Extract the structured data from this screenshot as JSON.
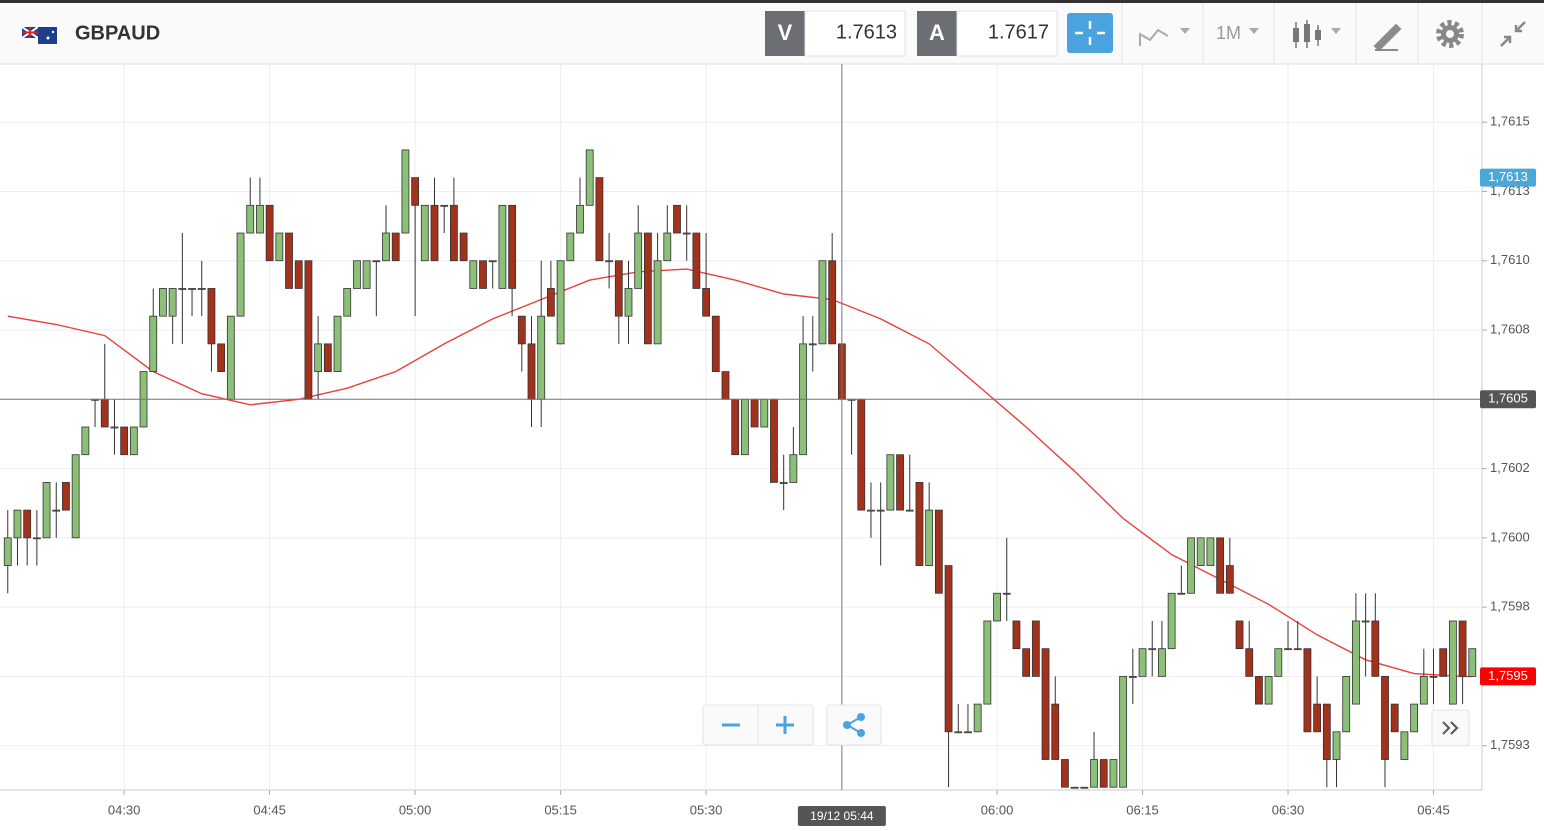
{
  "toolbar": {
    "symbol": "GBPAUD",
    "bid_label": "V",
    "bid": 1.7613,
    "ask_label": "A",
    "ask": 1.7617,
    "timeframe": "1M"
  },
  "chart_data": {
    "type": "candlestick",
    "x": [
      258,
      259,
      260,
      261,
      262,
      263,
      264,
      265,
      266,
      267,
      268,
      269,
      270,
      271,
      272,
      273,
      274,
      275,
      276,
      277,
      278,
      279,
      280,
      281,
      282,
      283,
      284,
      285,
      286,
      287,
      288,
      289,
      290,
      291,
      292,
      293,
      294,
      295,
      296,
      297,
      298,
      299,
      300,
      301,
      302,
      303,
      304,
      305,
      306,
      307,
      308,
      309,
      310,
      311,
      312,
      313,
      314,
      315,
      316,
      317,
      318,
      319,
      320,
      321,
      322,
      323,
      324,
      325,
      326,
      327,
      328,
      329,
      330,
      331,
      332,
      333,
      334,
      335,
      336,
      337,
      338,
      339,
      340,
      341,
      342,
      343,
      344,
      345,
      346,
      347,
      348,
      349,
      350,
      351,
      352,
      353,
      354,
      355,
      356,
      357,
      358,
      359,
      360,
      361,
      362,
      363,
      364,
      365,
      366,
      367,
      368,
      369,
      370,
      371,
      372,
      373,
      374,
      375,
      376,
      377,
      378,
      379,
      380,
      381,
      382,
      383,
      384,
      385,
      386,
      387,
      388,
      389,
      390,
      391,
      392,
      393,
      394,
      395,
      396,
      397,
      398,
      399,
      400,
      401,
      402,
      403,
      404,
      405,
      406,
      407,
      408,
      409
    ],
    "open": [
      1.7599,
      1.76,
      1.7601,
      1.76,
      1.76,
      1.7601,
      1.7602,
      1.76,
      1.7603,
      1.7605,
      1.7605,
      1.7604,
      1.7604,
      1.7603,
      1.7604,
      1.7606,
      1.7608,
      1.7608,
      1.7609,
      1.7609,
      1.7609,
      1.7609,
      1.7607,
      1.7605,
      1.7608,
      1.7611,
      1.7611,
      1.7612,
      1.761,
      1.7611,
      1.761,
      1.761,
      1.7606,
      1.7607,
      1.7606,
      1.7608,
      1.7609,
      1.7609,
      1.761,
      1.761,
      1.7611,
      1.7611,
      1.7613,
      1.761,
      1.7612,
      1.7612,
      1.7612,
      1.7611,
      1.7609,
      1.761,
      1.761,
      1.7609,
      1.7612,
      1.7608,
      1.7607,
      1.7605,
      1.7609,
      1.7607,
      1.761,
      1.7611,
      1.7612,
      1.7613,
      1.761,
      1.761,
      1.7608,
      1.7609,
      1.7611,
      1.7607,
      1.761,
      1.7612,
      1.7611,
      1.7611,
      1.7609,
      1.7608,
      1.7606,
      1.7605,
      1.7603,
      1.7605,
      1.7604,
      1.7605,
      1.7602,
      1.7602,
      1.7603,
      1.7607,
      1.7607,
      1.761,
      1.7607,
      1.7605,
      1.7605,
      1.7601,
      1.7601,
      1.7601,
      1.7603,
      1.7601,
      1.7602,
      1.7599,
      1.7601,
      1.7599,
      1.7593,
      1.7593,
      1.7593,
      1.7594,
      1.7597,
      1.7598,
      1.7597,
      1.7596,
      1.7597,
      1.7596,
      1.7594,
      1.7592,
      1.7591,
      1.7591,
      1.7591,
      1.7592,
      1.7591,
      1.7591,
      1.7595,
      1.7595,
      1.7596,
      1.7595,
      1.7596,
      1.7598,
      1.7598,
      1.7599,
      1.7599,
      1.76,
      1.7599,
      1.7597,
      1.7596,
      1.7595,
      1.7594,
      1.7595,
      1.7596,
      1.7596,
      1.7596,
      1.7594,
      1.7594,
      1.7592,
      1.7593,
      1.7594,
      1.7597,
      1.7597,
      1.7595,
      1.7594,
      1.7592,
      1.7593,
      1.7594,
      1.7595,
      1.7596,
      1.7594,
      1.7597,
      1.7595
    ],
    "high": [
      1.7601,
      1.7601,
      1.7601,
      1.7601,
      1.7602,
      1.7602,
      1.7602,
      1.7603,
      1.7604,
      1.7605,
      1.7607,
      1.7605,
      1.7604,
      1.7604,
      1.7606,
      1.7609,
      1.7609,
      1.7609,
      1.7611,
      1.7609,
      1.761,
      1.7609,
      1.7607,
      1.7608,
      1.7611,
      1.7613,
      1.7613,
      1.7612,
      1.7611,
      1.7611,
      1.761,
      1.761,
      1.7608,
      1.7607,
      1.7608,
      1.7609,
      1.761,
      1.761,
      1.761,
      1.7612,
      1.7611,
      1.7614,
      1.7613,
      1.7612,
      1.7613,
      1.7612,
      1.7613,
      1.7611,
      1.761,
      1.761,
      1.761,
      1.7612,
      1.7612,
      1.7608,
      1.7608,
      1.761,
      1.761,
      1.761,
      1.7611,
      1.7613,
      1.7614,
      1.7613,
      1.7611,
      1.761,
      1.761,
      1.7612,
      1.7611,
      1.7611,
      1.7612,
      1.7612,
      1.7612,
      1.7611,
      1.7611,
      1.7608,
      1.7606,
      1.7605,
      1.7605,
      1.7605,
      1.7605,
      1.7605,
      1.7603,
      1.7604,
      1.7608,
      1.7608,
      1.761,
      1.7611,
      1.7607,
      1.7605,
      1.7605,
      1.7602,
      1.7602,
      1.7603,
      1.7603,
      1.7603,
      1.7602,
      1.7602,
      1.7601,
      1.7599,
      1.7594,
      1.7594,
      1.7594,
      1.7597,
      1.7598,
      1.76,
      1.7597,
      1.7596,
      1.7597,
      1.7596,
      1.7595,
      1.7592,
      1.7591,
      1.7591,
      1.7593,
      1.7592,
      1.7592,
      1.7595,
      1.7596,
      1.7596,
      1.7597,
      1.7597,
      1.7598,
      1.7599,
      1.76,
      1.76,
      1.76,
      1.76,
      1.76,
      1.7597,
      1.7597,
      1.7595,
      1.7595,
      1.7596,
      1.7597,
      1.7597,
      1.7596,
      1.7595,
      1.7594,
      1.7593,
      1.7595,
      1.7598,
      1.7598,
      1.7598,
      1.7595,
      1.7594,
      1.7593,
      1.7594,
      1.7596,
      1.7596,
      1.7596,
      1.7597,
      1.7597,
      1.7596
    ],
    "low": [
      1.7598,
      1.7599,
      1.7599,
      1.7599,
      1.76,
      1.76,
      1.7601,
      1.76,
      1.7603,
      1.7604,
      1.7604,
      1.7603,
      1.7603,
      1.7603,
      1.7604,
      1.7606,
      1.7608,
      1.7607,
      1.7607,
      1.7608,
      1.7608,
      1.7606,
      1.7606,
      1.7605,
      1.7608,
      1.7611,
      1.7611,
      1.761,
      1.761,
      1.7609,
      1.7609,
      1.7605,
      1.7605,
      1.7606,
      1.7606,
      1.7608,
      1.7609,
      1.7609,
      1.7608,
      1.761,
      1.761,
      1.7611,
      1.7608,
      1.761,
      1.761,
      1.7611,
      1.761,
      1.761,
      1.7609,
      1.7609,
      1.7609,
      1.7609,
      1.7608,
      1.7606,
      1.7604,
      1.7604,
      1.7608,
      1.7607,
      1.761,
      1.7611,
      1.7612,
      1.761,
      1.7609,
      1.7607,
      1.7607,
      1.7609,
      1.7607,
      1.7607,
      1.761,
      1.7611,
      1.761,
      1.7609,
      1.7608,
      1.7606,
      1.7605,
      1.7603,
      1.7603,
      1.7604,
      1.7604,
      1.7602,
      1.7601,
      1.7602,
      1.7603,
      1.7606,
      1.7607,
      1.7607,
      1.7605,
      1.7603,
      1.7601,
      1.76,
      1.7599,
      1.7601,
      1.7601,
      1.7601,
      1.7599,
      1.7599,
      1.7598,
      1.7591,
      1.7593,
      1.7593,
      1.7593,
      1.7594,
      1.7597,
      1.7597,
      1.7596,
      1.7595,
      1.7595,
      1.7592,
      1.7592,
      1.7591,
      1.7591,
      1.7591,
      1.7591,
      1.7591,
      1.7591,
      1.7591,
      1.7594,
      1.7595,
      1.7595,
      1.7595,
      1.7596,
      1.7598,
      1.7598,
      1.7599,
      1.7599,
      1.7598,
      1.7598,
      1.7596,
      1.7595,
      1.7594,
      1.7594,
      1.7595,
      1.7596,
      1.7596,
      1.7593,
      1.7593,
      1.7591,
      1.7591,
      1.7593,
      1.7594,
      1.7595,
      1.7595,
      1.7591,
      1.7593,
      1.7592,
      1.7593,
      1.7594,
      1.7594,
      1.7595,
      1.7594,
      1.7594,
      1.7595
    ],
    "close": [
      1.76,
      1.7601,
      1.76,
      1.76,
      1.7602,
      1.7601,
      1.7601,
      1.7603,
      1.7604,
      1.7605,
      1.7604,
      1.7604,
      1.7603,
      1.7604,
      1.7606,
      1.7608,
      1.7609,
      1.7609,
      1.7609,
      1.7609,
      1.7609,
      1.7607,
      1.7606,
      1.7608,
      1.7611,
      1.7612,
      1.7612,
      1.761,
      1.7611,
      1.7609,
      1.7609,
      1.7605,
      1.7607,
      1.7606,
      1.7608,
      1.7609,
      1.761,
      1.761,
      1.761,
      1.7611,
      1.761,
      1.7614,
      1.7612,
      1.7612,
      1.761,
      1.7612,
      1.761,
      1.761,
      1.761,
      1.7609,
      1.761,
      1.7612,
      1.7609,
      1.7607,
      1.7605,
      1.7608,
      1.7608,
      1.761,
      1.7611,
      1.7612,
      1.7614,
      1.761,
      1.761,
      1.7608,
      1.7609,
      1.7611,
      1.7607,
      1.761,
      1.7611,
      1.7611,
      1.7611,
      1.7609,
      1.7608,
      1.7606,
      1.7605,
      1.7603,
      1.7605,
      1.7604,
      1.7605,
      1.7602,
      1.7602,
      1.7603,
      1.7607,
      1.7607,
      1.761,
      1.7607,
      1.7605,
      1.7605,
      1.7601,
      1.7601,
      1.7601,
      1.7603,
      1.7601,
      1.7601,
      1.7599,
      1.7601,
      1.7598,
      1.7593,
      1.7593,
      1.7593,
      1.7594,
      1.7597,
      1.7598,
      1.7598,
      1.7596,
      1.7595,
      1.7595,
      1.7592,
      1.7592,
      1.7591,
      1.7591,
      1.7591,
      1.7592,
      1.7591,
      1.7592,
      1.7595,
      1.7595,
      1.7596,
      1.7596,
      1.7596,
      1.7598,
      1.7598,
      1.76,
      1.76,
      1.76,
      1.7598,
      1.7598,
      1.7596,
      1.7595,
      1.7594,
      1.7595,
      1.7596,
      1.7596,
      1.7596,
      1.7593,
      1.7593,
      1.7592,
      1.7593,
      1.7595,
      1.7597,
      1.7597,
      1.7595,
      1.7592,
      1.7593,
      1.7593,
      1.7594,
      1.7595,
      1.7595,
      1.7595,
      1.7597,
      1.7595,
      1.7596
    ],
    "up_color": "#8cbf78",
    "down_color": "#a3321c",
    "moving_average": {
      "color": "#e8413c",
      "x": [
        258,
        263,
        268,
        273,
        278,
        283,
        288,
        293,
        298,
        303,
        308,
        313,
        318,
        323,
        328,
        333,
        338,
        343,
        348,
        353,
        358,
        363,
        368,
        373,
        378,
        383,
        388,
        393,
        398,
        403,
        408,
        409
      ],
      "values": [
        1.7608,
        1.76077,
        1.76073,
        1.7606,
        1.76052,
        1.76048,
        1.7605,
        1.76054,
        1.7606,
        1.7607,
        1.76079,
        1.76086,
        1.76093,
        1.76096,
        1.76097,
        1.76093,
        1.76088,
        1.76086,
        1.76079,
        1.7607,
        1.76055,
        1.7604,
        1.76024,
        1.76007,
        1.75994,
        1.75985,
        1.75976,
        1.75965,
        1.75956,
        1.75951,
        1.7595,
        1.7595
      ]
    },
    "xlim": [
      257.2,
      410
    ],
    "xticks": [
      {
        "value": 270,
        "label": "04:30"
      },
      {
        "value": 285,
        "label": "04:45"
      },
      {
        "value": 300,
        "label": "05:00"
      },
      {
        "value": 315,
        "label": "05:15"
      },
      {
        "value": 330,
        "label": "05:30"
      },
      {
        "value": 360,
        "label": "06:00"
      },
      {
        "value": 375,
        "label": "06:15"
      },
      {
        "value": 390,
        "label": "06:30"
      },
      {
        "value": 405,
        "label": "06:45"
      }
    ],
    "ylim": [
      1.75909,
      1.76171
    ],
    "yticks": [
      {
        "value": 1.7615,
        "label": "1,7615"
      },
      {
        "value": 1.76125,
        "label": "1,7613"
      },
      {
        "value": 1.761,
        "label": "1,7610"
      },
      {
        "value": 1.76075,
        "label": "1,7608"
      },
      {
        "value": 1.7605,
        "label": "1,7605"
      },
      {
        "value": 1.76025,
        "label": "1,7602"
      },
      {
        "value": 1.76,
        "label": "1,7600"
      },
      {
        "value": 1.75975,
        "label": "1,7598"
      },
      {
        "value": 1.7595,
        "label": "1,7595"
      },
      {
        "value": 1.75925,
        "label": "1,7593"
      }
    ],
    "grid": true,
    "crosshair": {
      "value": 1.7605,
      "label": "1,7605",
      "x": 344,
      "x_label": "19/12 05:44"
    },
    "price_tags": [
      {
        "value": 1.7613,
        "label": "1,7613",
        "color": "#4aa8d8"
      },
      {
        "value": 1.7595,
        "label": "1,7595",
        "color": "#ff0000"
      }
    ]
  }
}
